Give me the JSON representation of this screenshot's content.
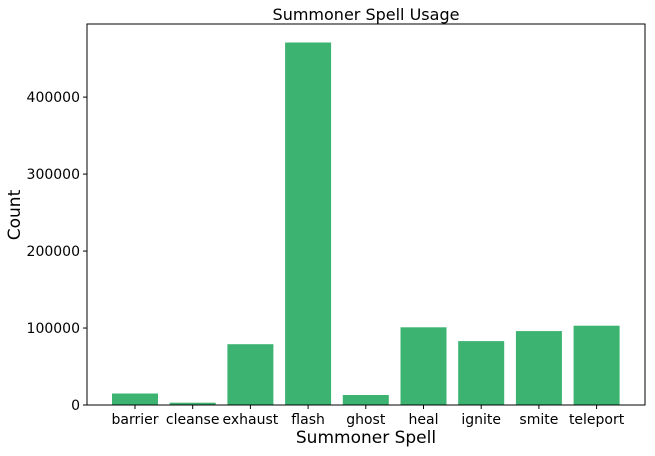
{
  "chart_data": {
    "type": "bar",
    "title": "Summoner Spell Usage",
    "xlabel": "Summoner Spell",
    "ylabel": "Count",
    "categories": [
      "barrier",
      "cleanse",
      "exhaust",
      "flash",
      "ghost",
      "heal",
      "ignite",
      "smite",
      "teleport"
    ],
    "values": [
      15000,
      3000,
      79000,
      471000,
      13000,
      101000,
      83000,
      96000,
      103000
    ],
    "ylim": [
      0,
      495000
    ],
    "yticks": [
      0,
      100000,
      200000,
      300000,
      400000
    ],
    "ytick_labels": [
      "0",
      "100000",
      "200000",
      "300000",
      "400000"
    ],
    "bar_color": "#3cb371",
    "grid": false,
    "legend": "none"
  }
}
